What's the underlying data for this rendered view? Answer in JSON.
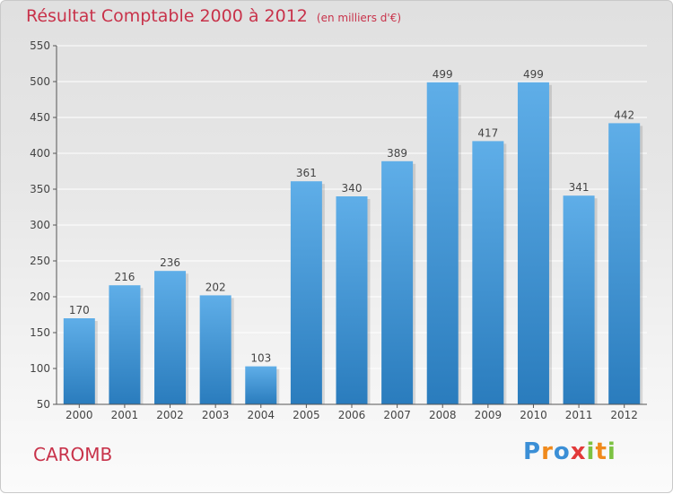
{
  "title": "Résultat Comptable 2000 à 2012",
  "unit_note": "(en milliers d'€)",
  "commune": "CAROMB",
  "logo": {
    "letters": [
      "P",
      "r",
      "o",
      "x",
      "i",
      "t",
      "i"
    ],
    "colors": [
      "#3b8fd6",
      "#f08a1c",
      "#3b8fd6",
      "#e23a3a",
      "#7cc242",
      "#f08a1c",
      "#7cc242"
    ]
  },
  "colors": {
    "title": "#c8324a",
    "bar_top": "#5faee8",
    "bar_bottom": "#2a7cbd",
    "axis": "#555555",
    "grid": "#ffffff"
  },
  "chart_data": {
    "type": "bar",
    "title": "Résultat Comptable 2000 à 2012",
    "xlabel": "",
    "ylabel": "",
    "categories": [
      "2000",
      "2001",
      "2002",
      "2003",
      "2004",
      "2005",
      "2006",
      "2007",
      "2008",
      "2009",
      "2010",
      "2011",
      "2012"
    ],
    "values": [
      170,
      216,
      236,
      202,
      103,
      361,
      340,
      389,
      499,
      417,
      499,
      341,
      442
    ],
    "ylim": [
      50,
      550
    ],
    "yticks": [
      50,
      100,
      150,
      200,
      250,
      300,
      350,
      400,
      450,
      500,
      550
    ],
    "grid": true
  }
}
